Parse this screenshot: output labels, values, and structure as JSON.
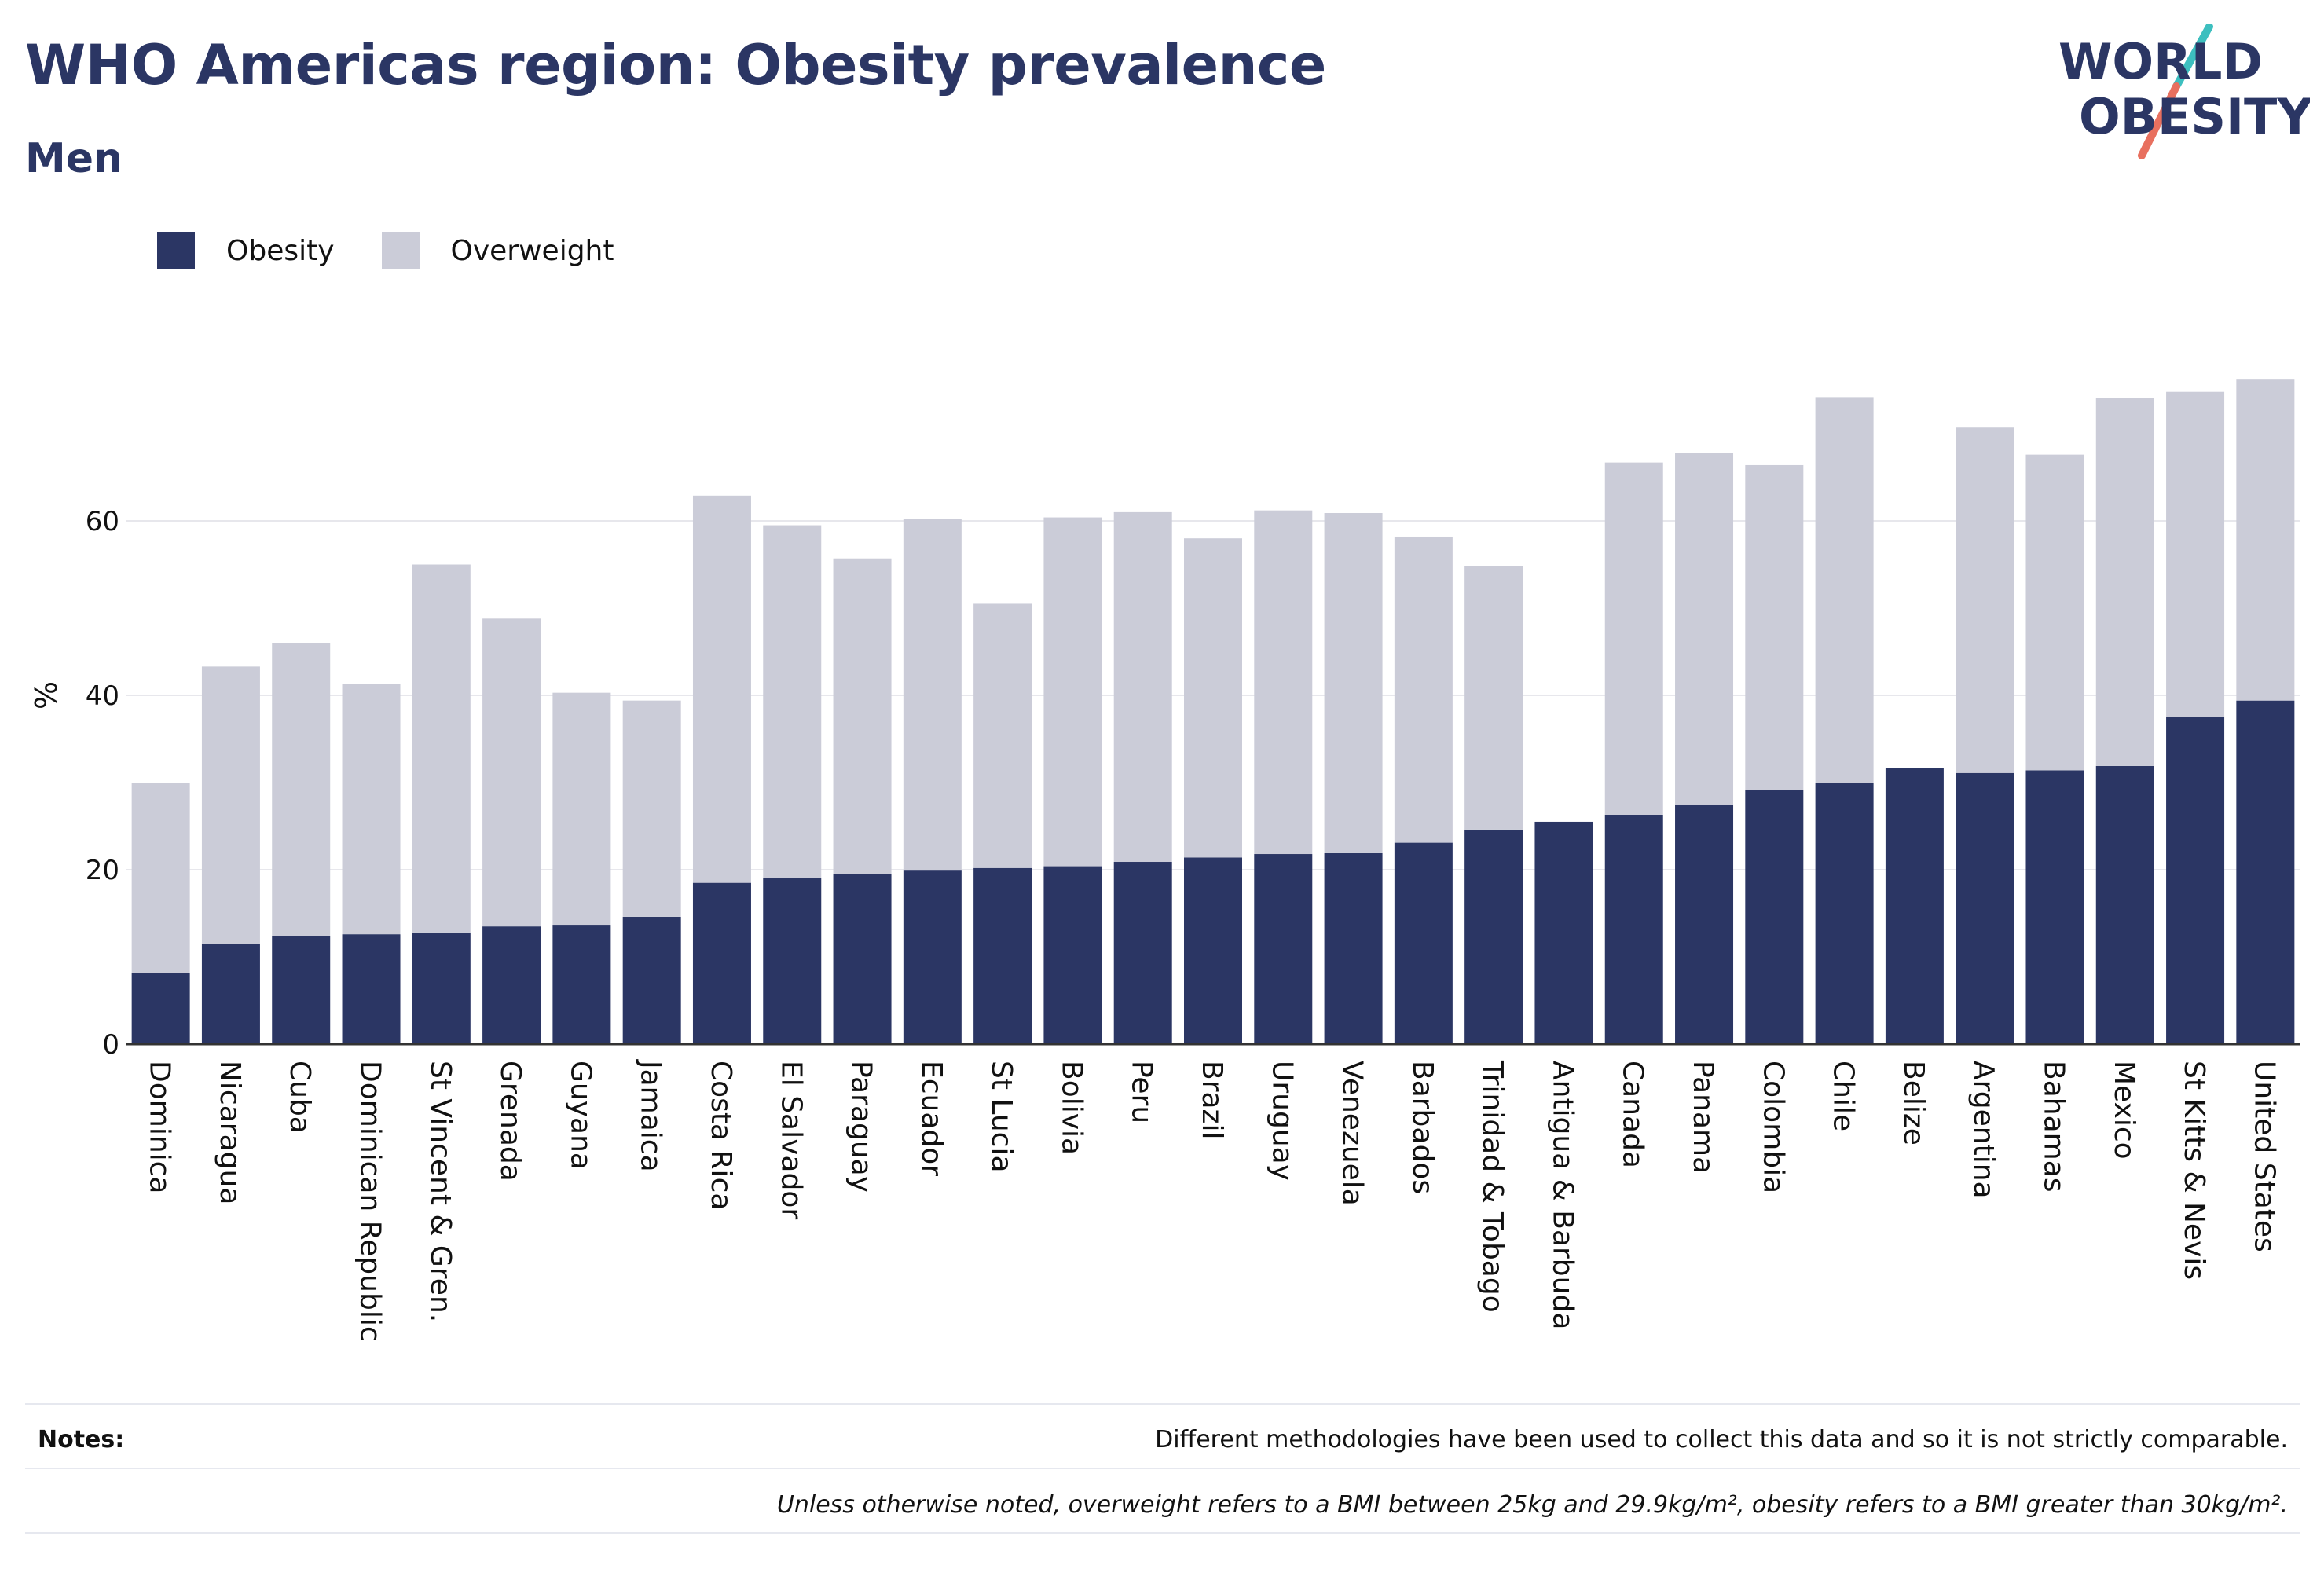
{
  "header": {
    "title": "WHO Americas region: Obesity prevalence",
    "subtitle": "Men"
  },
  "logo": {
    "line1": "WORLD",
    "line2": "OBESITY",
    "teal_color": "#3dbfbf",
    "coral_color": "#e8705f",
    "text_color": "#2b3664"
  },
  "notes": {
    "label": "Notes:",
    "note1": "Different methodologies have been used to collect this data and so it is not strictly comparable.",
    "note2": "Unless otherwise noted, overweight refers to a BMI between 25kg and 29.9kg/m², obesity refers to a BMI greater than 30kg/m²."
  },
  "chart_data": {
    "type": "bar",
    "stacked": true,
    "ylabel": "%",
    "xlabel": "",
    "ylim": [
      0,
      80
    ],
    "yticks": [
      0,
      20,
      40,
      60
    ],
    "grid": true,
    "legend_position": "top-left",
    "categories": [
      "Dominica",
      "Nicaragua",
      "Cuba",
      "Dominican Republic",
      "St Vincent & Gren.",
      "Grenada",
      "Guyana",
      "Jamaica",
      "Costa Rica",
      "El Salvador",
      "Paraguay",
      "Ecuador",
      "St Lucia",
      "Bolivia",
      "Peru",
      "Brazil",
      "Uruguay",
      "Venezuela",
      "Barbados",
      "Trinidad & Tobago",
      "Antigua & Barbuda",
      "Canada",
      "Panama",
      "Colombia",
      "Chile",
      "Belize",
      "Argentina",
      "Bahamas",
      "Mexico",
      "St Kitts & Nevis",
      "United States"
    ],
    "series": [
      {
        "name": "Obesity",
        "color": "#2b3664",
        "values": [
          8.2,
          11.5,
          12.4,
          12.6,
          12.8,
          13.5,
          13.6,
          14.6,
          18.5,
          19.1,
          19.5,
          19.9,
          20.2,
          20.4,
          20.9,
          21.4,
          21.8,
          21.9,
          23.1,
          24.6,
          25.5,
          26.3,
          27.4,
          29.1,
          30.0,
          31.7,
          31.1,
          31.4,
          31.9,
          37.5,
          39.4
        ]
      },
      {
        "name": "Overweight",
        "color": "#cbccd8",
        "values": [
          21.8,
          31.8,
          33.6,
          28.7,
          42.2,
          35.3,
          26.7,
          24.8,
          44.4,
          40.4,
          36.2,
          40.3,
          30.3,
          40.0,
          40.1,
          36.6,
          39.4,
          39.0,
          35.1,
          30.2,
          0,
          40.4,
          40.4,
          37.3,
          44.2,
          0,
          39.6,
          36.2,
          42.2,
          37.3,
          36.8
        ]
      }
    ]
  }
}
